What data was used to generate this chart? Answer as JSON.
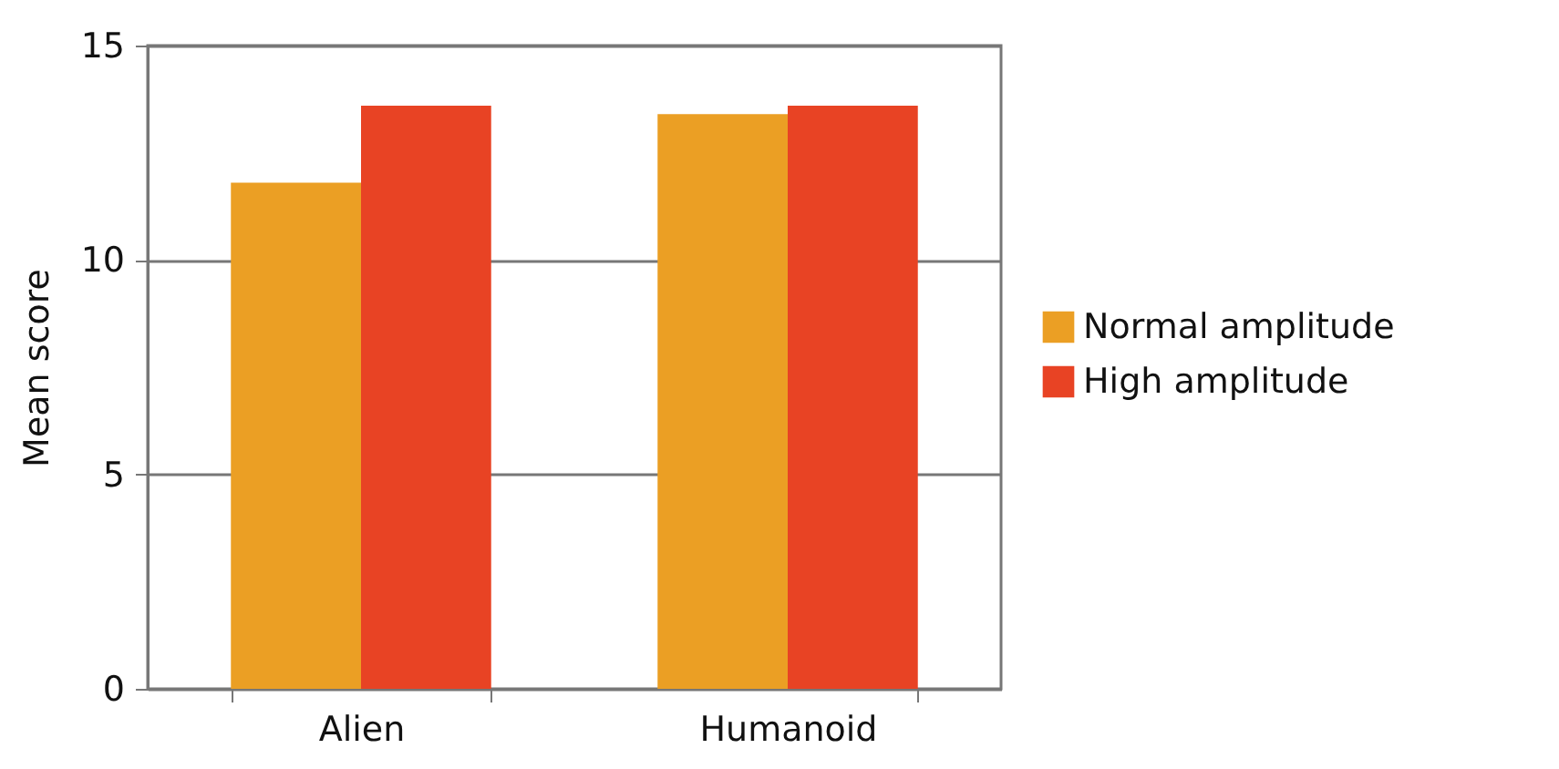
{
  "chart_data": {
    "type": "bar",
    "ylabel": "Mean score",
    "categories": [
      "Alien",
      "Humanoid"
    ],
    "series": [
      {
        "name": "Normal amplitude",
        "color": "#eb9f24",
        "values": [
          11.8,
          13.4
        ]
      },
      {
        "name": "High amplitude",
        "color": "#e84324",
        "values": [
          13.6,
          13.6
        ]
      }
    ],
    "ylim": [
      0,
      15
    ],
    "yticks": [
      0,
      5,
      10,
      15
    ],
    "grid": "y",
    "legend": "right"
  }
}
